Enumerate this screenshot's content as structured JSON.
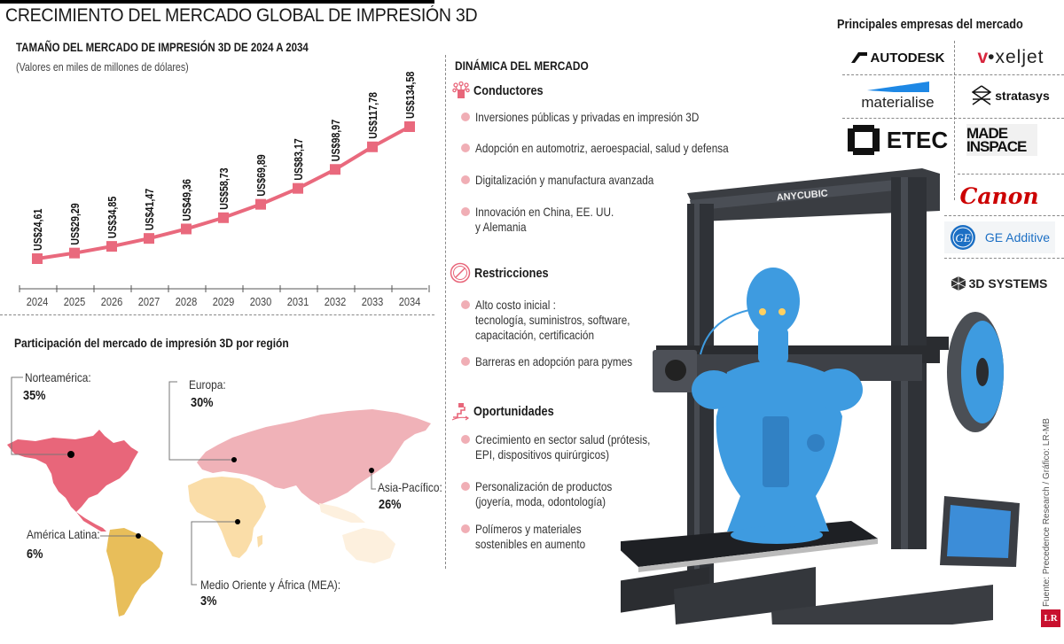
{
  "header": {
    "title": "CRECIMIENTO DEL MERCADO GLOBAL DE IMPRESIÓN 3D"
  },
  "chart_data": [
    {
      "type": "line",
      "title": "TAMAÑO DEL MERCADO DE IMPRESIÓN 3D DE 2024 A 2034",
      "subtitle": "(Valores en miles de millones de dólares)",
      "xlabel": "",
      "ylabel": "",
      "categories": [
        "2024",
        "2025",
        "2026",
        "2027",
        "2028",
        "2029",
        "2030",
        "2031",
        "2032",
        "2033",
        "2034"
      ],
      "values": [
        24.61,
        29.29,
        34.85,
        41.47,
        49.36,
        58.73,
        69.89,
        83.17,
        98.97,
        117.78,
        134.58
      ],
      "data_labels": [
        "US$24,61",
        "US$29,29",
        "US$34,85",
        "US$41,47",
        "US$49,36",
        "US$58,73",
        "US$69,89",
        "US$83,17",
        "US$98,97",
        "US$117,78",
        "US$134,58"
      ],
      "series_color": "#E9697D",
      "marker": "square",
      "grid": false,
      "legend": "none"
    },
    {
      "type": "map",
      "title": "Participación del mercado de impresión 3D por región",
      "categories": [
        "Norteamérica",
        "Europa",
        "Asia-Pacífico",
        "América Latina",
        "Medio Oriente y África (MEA)"
      ],
      "values": [
        35,
        30,
        26,
        6,
        3
      ],
      "unit": "%"
    }
  ],
  "chart": {
    "title": "TAMAÑO DEL MERCADO DE IMPRESIÓN 3D DE 2024 A 2034",
    "subtitle": "(Valores en miles de millones de dólares)"
  },
  "map": {
    "title": "Participación del mercado de impresión 3D por región",
    "regions": [
      {
        "name": "Norteamérica:",
        "pct": "35%",
        "color": "#E8667A"
      },
      {
        "name": "Europa:",
        "pct": "30%",
        "color": "#F0B2B8"
      },
      {
        "name": "Asia-Pacífico:",
        "pct": "26%",
        "color": "#F0B2B8"
      },
      {
        "name": "América Latina:",
        "pct": "6%",
        "color": "#E8BE5A"
      },
      {
        "name": "Medio Oriente y África (MEA):",
        "pct": "3%",
        "color": "#FADDA8"
      }
    ]
  },
  "dynamics": {
    "title": "DINÁMICA DEL MERCADO",
    "sections": [
      {
        "title": "Conductores",
        "icon": "network-icon",
        "items": [
          "Inversiones públicas y privadas en impresión 3D",
          "Adopción en automotriz, aeroespacial, salud y defensa",
          "Digitalización y manufactura avanzada",
          "Innovación en China, EE. UU.\ny Alemania"
        ]
      },
      {
        "title": "Restricciones",
        "icon": "prohibited-icon",
        "items": [
          "Alto costo inicial :\ntecnología, suministros, software,\ncapacitación, certificación",
          "Barreras en adopción para pymes"
        ]
      },
      {
        "title": "Oportunidades",
        "icon": "stairs-growth-icon",
        "items": [
          "Crecimiento en sector salud (prótesis,\nEPI, dispositivos quirúrgicos)",
          "Personalización de productos\n(joyería, moda, odontología)",
          "Polímeros y materiales\nsostenibles en aumento"
        ]
      }
    ]
  },
  "companies": {
    "title": "Principales empresas del mercado",
    "logos": [
      "AUTODESK",
      "voxeljet",
      "materialise",
      "stratasys",
      "ETEC",
      "MADE IN SPACE",
      "Canon",
      "GE Additive",
      "3D SYSTEMS"
    ]
  },
  "printer": {
    "brand": "ANYCUBIC"
  },
  "footer": {
    "source": "Fuente: Precedence Research / Gráfico: LR-MB",
    "badge": "LR"
  },
  "colors": {
    "accent": "#E9697D",
    "bullet": "#F0AEB5",
    "robot_blue": "#3E9BE0",
    "lr_red": "#C8102E"
  }
}
